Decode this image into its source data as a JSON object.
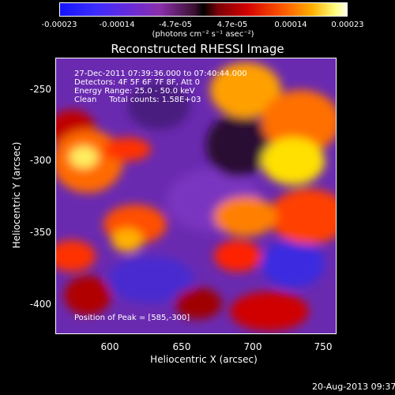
{
  "colorbar": {
    "ticks": [
      "-0.00023",
      "-0.00014",
      "-4.7e-05",
      "4.7e-05",
      "0.00014",
      "0.00023"
    ],
    "units": "(photons cm⁻² s⁻¹ asec⁻²)"
  },
  "title": "Reconstructed RHESSI Image",
  "info": {
    "time": "27-Dec-2011 07:39:36.000 to 07:40:44.000",
    "detectors": "Detectors: 4F 5F 6F 7F 8F, Att 0",
    "energy": "Energy Range: 25.0 - 50.0 keV",
    "clean": "Clean     Total counts: 1.58E+03",
    "peak": "Position of Peak = [585,-300]"
  },
  "axes": {
    "x_title": "Heliocentric X (arcsec)",
    "y_title": "Heliocentric Y (arcsec)",
    "x_ticks": [
      "600",
      "650",
      "700",
      "750"
    ],
    "y_ticks": [
      "-250",
      "-300",
      "-350",
      "-400"
    ]
  },
  "timestamp": "20-Aug-2013 09:37",
  "colors": {
    "background": "#000000",
    "low": "#1414ff",
    "high": "#ffffe8",
    "mid": "#6a2ab0"
  }
}
